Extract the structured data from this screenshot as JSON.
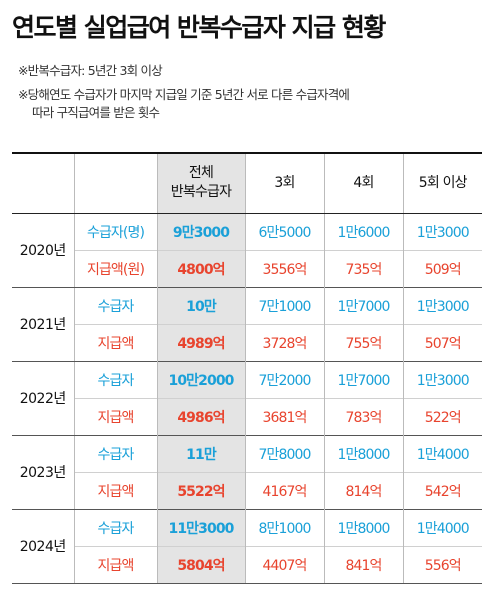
{
  "title": "연도별 실업급여 반복수급자 지급 현황",
  "notes": [
    "※반복수급자: 5년간 3회 이상",
    "※당해연도 수급자가 마지막 지급일 기준 5년간 서로 다른 수급자격에",
    "따라 구직급여를 받은 횟수"
  ],
  "table": {
    "headers": {
      "total_line1": "전체",
      "total_line2": "반복수급자",
      "c3": "3회",
      "c4": "4회",
      "c5": "5회 이상"
    },
    "rows": [
      {
        "year": "2020년",
        "recipients": {
          "label": "수급자(명)",
          "total": "9만3000",
          "c3": "6만5000",
          "c4": "1만6000",
          "c5": "1만3000"
        },
        "amount": {
          "label": "지급액(원)",
          "total": "4800억",
          "c3": "3556억",
          "c4": "735억",
          "c5": "509억"
        }
      },
      {
        "year": "2021년",
        "recipients": {
          "label": "수급자",
          "total": "10만",
          "c3": "7만1000",
          "c4": "1만7000",
          "c5": "1만3000"
        },
        "amount": {
          "label": "지급액",
          "total": "4989억",
          "c3": "3728억",
          "c4": "755억",
          "c5": "507억"
        }
      },
      {
        "year": "2022년",
        "recipients": {
          "label": "수급자",
          "total": "10만2000",
          "c3": "7만2000",
          "c4": "1만7000",
          "c5": "1만3000"
        },
        "amount": {
          "label": "지급액",
          "total": "4986억",
          "c3": "3681억",
          "c4": "783억",
          "c5": "522억"
        }
      },
      {
        "year": "2023년",
        "recipients": {
          "label": "수급자",
          "total": "11만",
          "c3": "7만8000",
          "c4": "1만8000",
          "c5": "1만4000"
        },
        "amount": {
          "label": "지급액",
          "total": "5522억",
          "c3": "4167억",
          "c4": "814억",
          "c5": "542억"
        }
      },
      {
        "year": "2024년",
        "recipients": {
          "label": "수급자",
          "total": "11만3000",
          "c3": "8만1000",
          "c4": "1만8000",
          "c5": "1만4000"
        },
        "amount": {
          "label": "지급액",
          "total": "5804억",
          "c3": "4407억",
          "c4": "841억",
          "c5": "556억"
        }
      }
    ]
  },
  "colors": {
    "recipients": "#1aa0d8",
    "amount": "#e8442e",
    "total_column_bg": "#e4e4e4"
  }
}
